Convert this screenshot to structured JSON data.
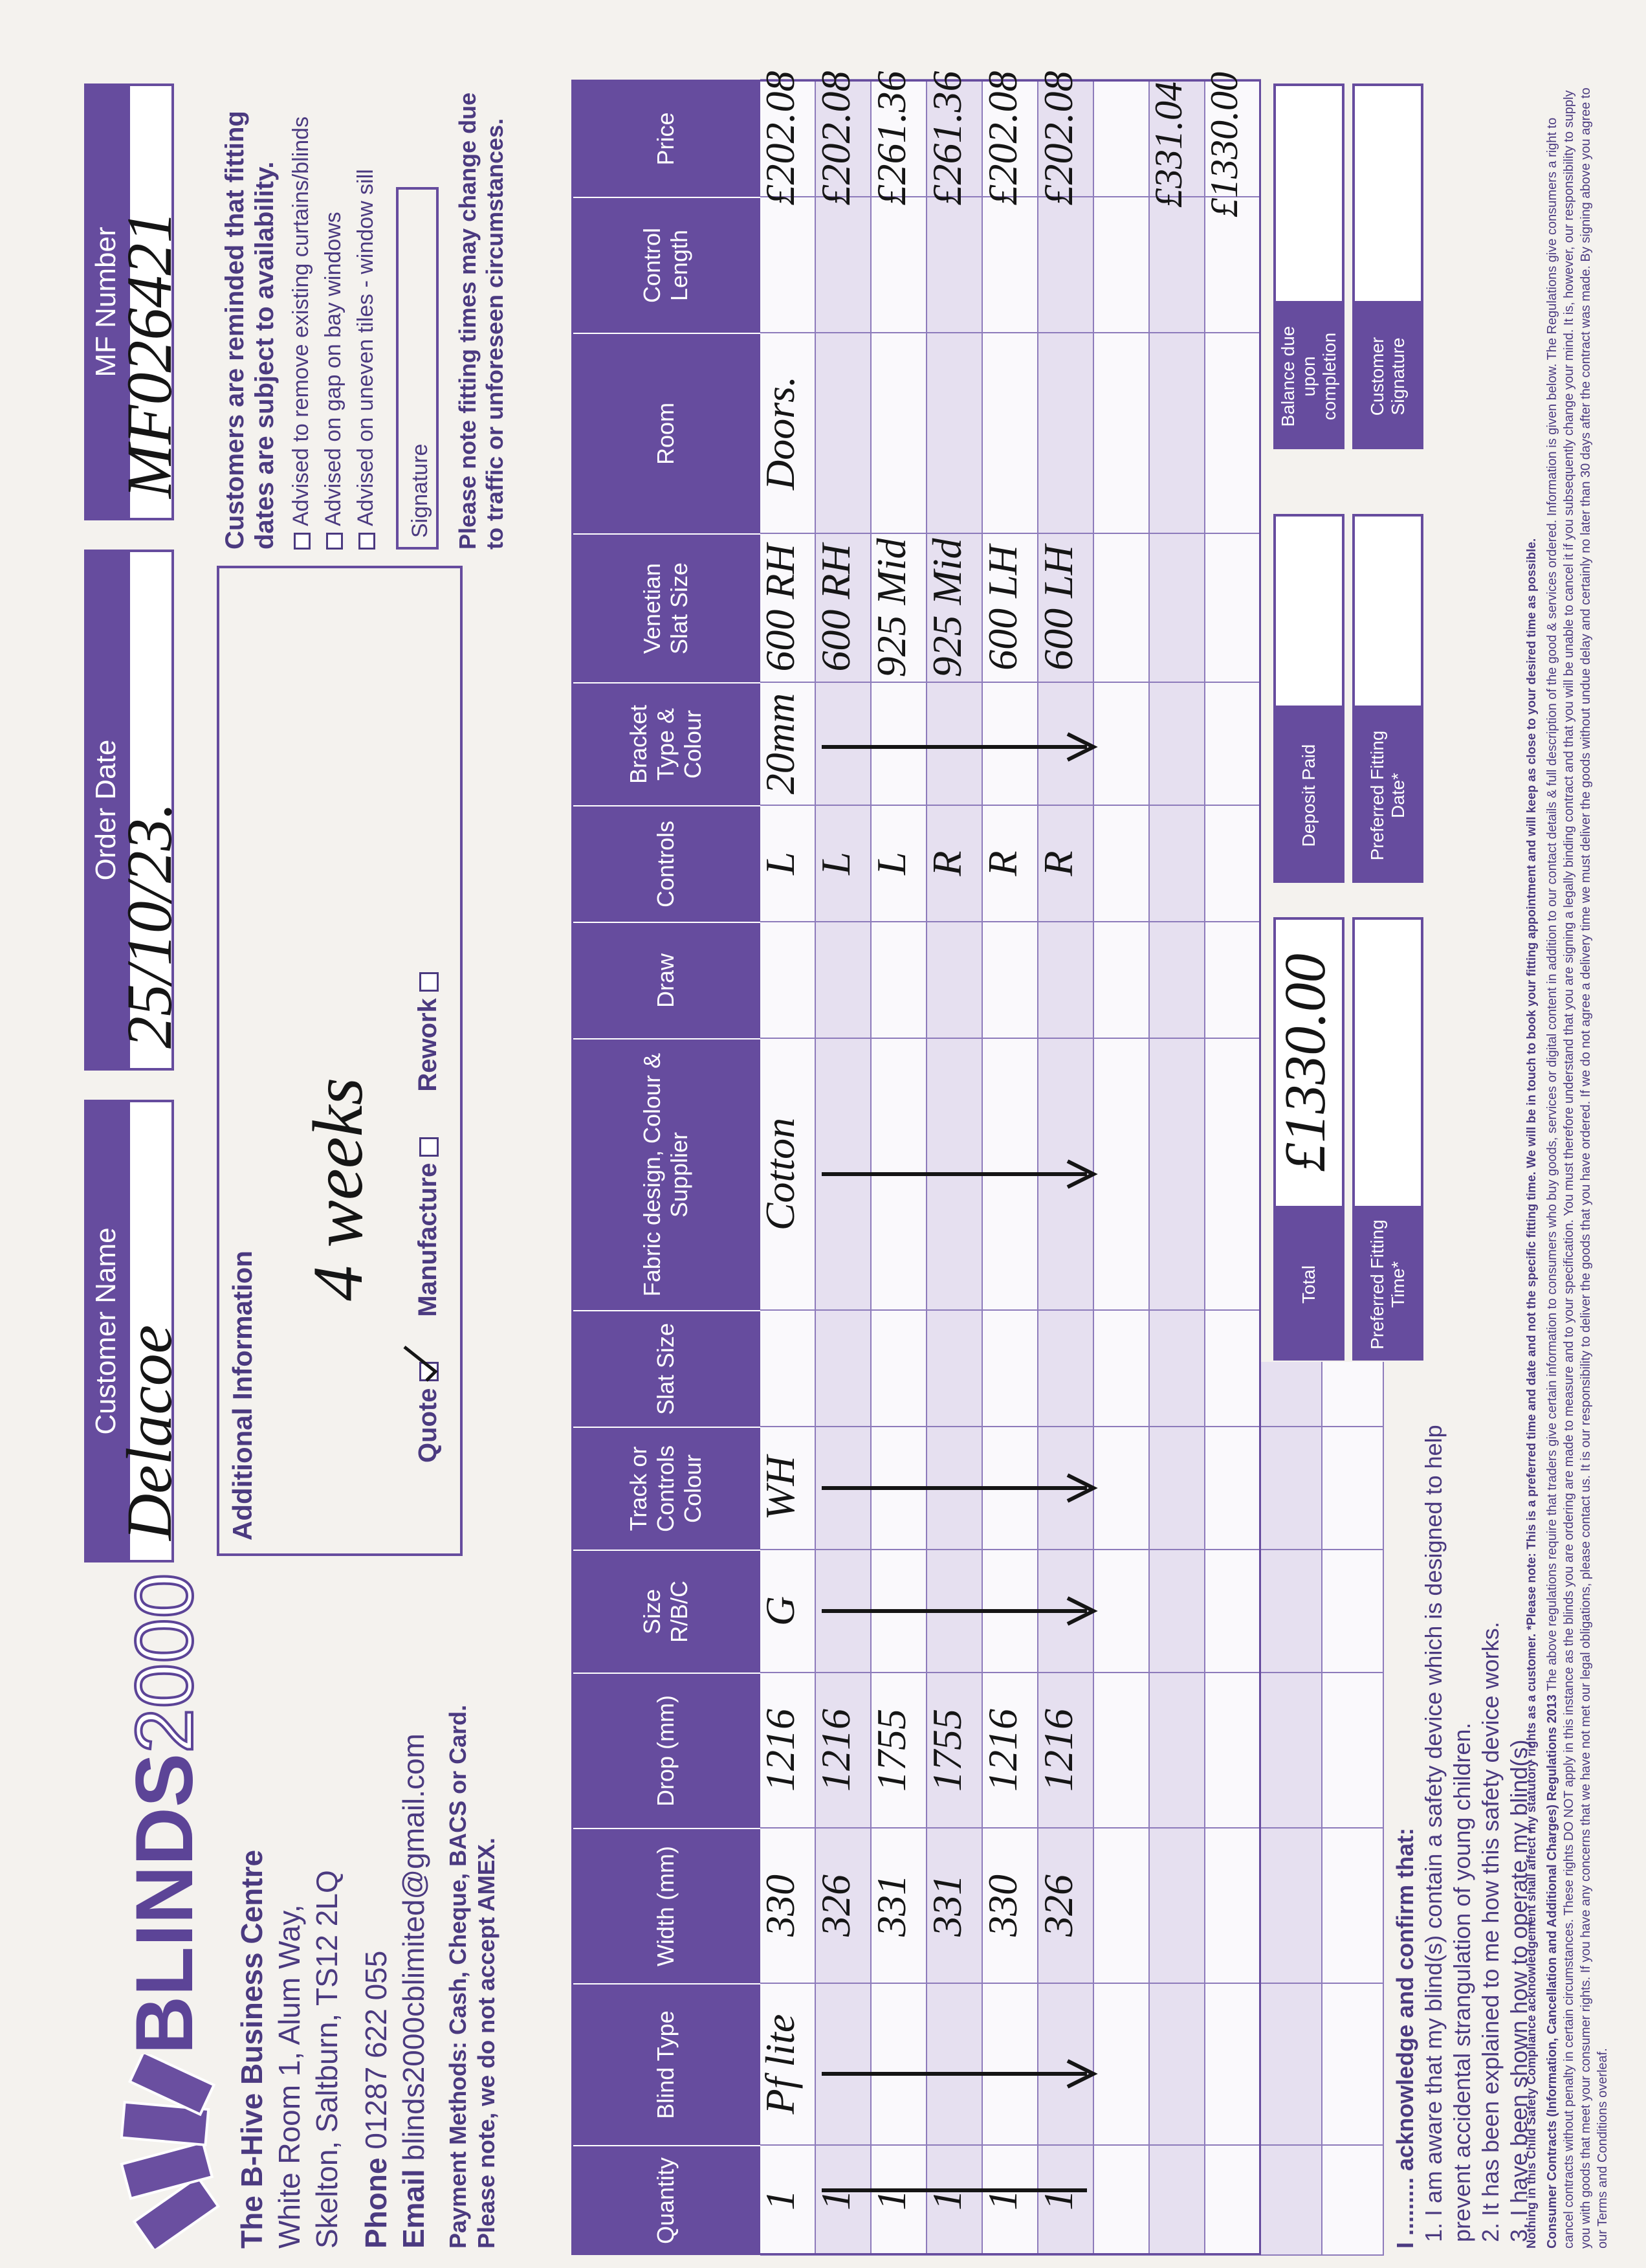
{
  "logo": {
    "brand": "BLINDS",
    "number": "2000"
  },
  "address": {
    "name": "The B-Hive Business Centre",
    "line1": "White Room 1, Alum Way,",
    "line2": "Skelton, Saltburn, TS12 2LQ",
    "phone_label": "Phone",
    "phone": "01287 622 055",
    "email_label": "Email",
    "email": "blinds2000cblimited@gmail.com",
    "payment": "Payment Methods: Cash, Cheque, BACS or Card.",
    "amex": "Please note, we do not accept AMEX."
  },
  "header_fields": [
    {
      "label": "Customer Name",
      "value": "Delacoe"
    },
    {
      "label": "Order Date",
      "value": "25/10/23."
    },
    {
      "label": "MF Number",
      "value": "MF026421"
    }
  ],
  "additional": {
    "title": "Additional Information",
    "note": "4 weeks",
    "options": [
      {
        "label": "Quote",
        "checked": true
      },
      {
        "label": "Manufacture",
        "checked": false
      },
      {
        "label": "Rework",
        "checked": false
      }
    ]
  },
  "reminder": {
    "title": "Customers are reminded that fitting dates are subject to availability.",
    "checks": [
      "Advised to remove existing curtains/blinds",
      "Advised on gap on bay windows",
      "Advised on uneven tiles - window sill"
    ],
    "signature": "Signature",
    "note": "Please note fitting times may change due to traffic or unforeseen circumstances."
  },
  "table": {
    "columns": [
      "Quantity",
      "Blind Type",
      "Width (mm)",
      "Drop (mm)",
      "Size R/B/C",
      "Track or Controls Colour",
      "Slat Size",
      "Fabric design, Colour & Supplier",
      "Draw",
      "Controls",
      "Bracket Type & Colour",
      "Venetian Slat Size",
      "Room",
      "Control Length",
      "Price"
    ],
    "rows": [
      [
        "1",
        "Pf lite",
        "330",
        "1216",
        "G",
        "WH",
        null,
        "Cotton",
        null,
        "L",
        "20mm",
        "600 RH",
        "Doors.",
        null,
        "£202.08"
      ],
      [
        "1",
        null,
        "326",
        "1216",
        null,
        null,
        null,
        null,
        null,
        "L",
        null,
        "600 RH",
        null,
        null,
        "£202.08"
      ],
      [
        "1",
        null,
        "331",
        "1755",
        null,
        null,
        null,
        null,
        null,
        "L",
        null,
        "925 Mid",
        null,
        null,
        "£261.36"
      ],
      [
        "1",
        null,
        "331",
        "1755",
        null,
        null,
        null,
        null,
        null,
        "R",
        null,
        "925 Mid",
        null,
        null,
        "£261.36"
      ],
      [
        "1",
        null,
        "330",
        "1216",
        null,
        null,
        null,
        null,
        null,
        "R",
        null,
        "600 LH",
        null,
        null,
        "£202.08"
      ],
      [
        "1",
        null,
        "326",
        "1216",
        null,
        null,
        null,
        null,
        null,
        "R",
        null,
        "600 LH",
        null,
        null,
        "£202.08"
      ]
    ],
    "price_notes": [
      "£331.04",
      "£1330.00"
    ]
  },
  "summary_boxes": [
    [
      {
        "label": "Total",
        "value": "£1330.00"
      },
      {
        "label": "Deposit Paid"
      },
      {
        "label": "Balance due upon completion"
      }
    ],
    [
      {
        "label": "Preferred Fitting Time*"
      },
      {
        "label": "Preferred Fitting Date*"
      },
      {
        "label": "Customer Signature"
      }
    ]
  ],
  "acknowledgement": {
    "intro": "I ......... acknowledge and confirm that:",
    "items": [
      "1. I am aware that my blind(s) contain a safety device which is designed to help prevent accidental strangulation of young children.",
      "2. It has been explained to me how this safety device works.",
      "3. I have been shown how to operate my blind(s)"
    ]
  },
  "footer": {
    "safety": "Nothing in this Child Safety Compliance acknowledgement shall affect my statutory rights as a customer.",
    "please_note": "*Please note: This is a preferred time and date and not the specific fitting time. We will be in touch to book your fitting appointment and will keep as close to your desired time as possible.",
    "contracts_title": "Consumer Contracts (Information, Cancellation and Additional Charges) Regulations 2013",
    "contracts": "The above regulations require that traders give certain information to consumers who buy goods, services or digital content in addition to our contact details & full description of the good & services ordered. Information is given below. The Regulations give consumers a right to cancel contracts without penalty in certain circumstances. These rights DO NOT apply in this instance as the blinds you are ordering are made to measure and to your specification. You must therefore understand that you are signing a legally binding contract and that you will be unable to cancel it if you subsequently change your mind. It is, however, our responsibility to supply you with goods that meet your consumer rights. If you have any concerns that we have not met our legal obligations, please contact us. It is our responsibility to deliver the goods that you have ordered. If we do not agree a delivery time we must deliver the goods without undue delay and certainly no later than 30 days after the contract was made. By signing above you agree to our Terms and Conditions overleaf."
  }
}
